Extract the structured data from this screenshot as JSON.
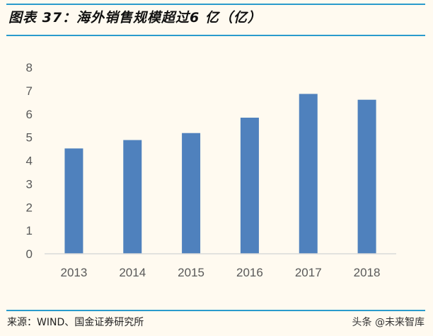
{
  "header": {
    "title": "图表 37：海外销售规模超过6 亿（亿）"
  },
  "footer": {
    "source": "来源：WIND、国金证券研究所",
    "watermark": "头条 @未来智库"
  },
  "colors": {
    "bar": "#4f81bd",
    "rule": "#2a9bcc",
    "background": "#fffaf0"
  },
  "chart_data": {
    "type": "bar",
    "title": "",
    "xlabel": "",
    "ylabel": "",
    "categories": [
      "2013",
      "2014",
      "2015",
      "2016",
      "2017",
      "2018"
    ],
    "values": [
      4.52,
      4.88,
      5.18,
      5.84,
      6.86,
      6.61
    ],
    "ylim": [
      0,
      8
    ],
    "yticks": [
      "0",
      "1",
      "2",
      "3",
      "4",
      "5",
      "6",
      "7",
      "8"
    ],
    "grid": false,
    "legend": "none"
  }
}
